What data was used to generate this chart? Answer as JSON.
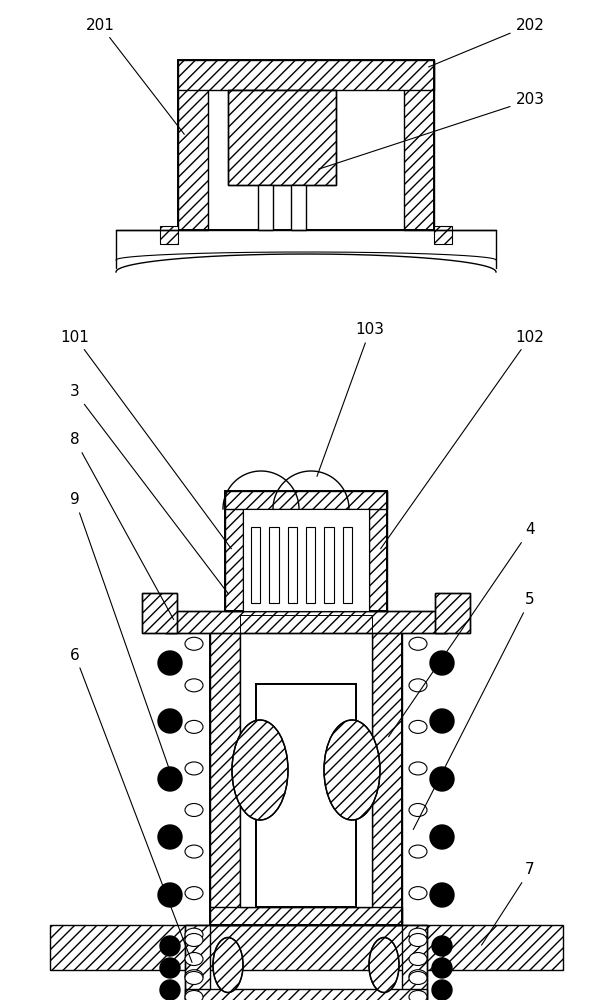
{
  "bg_color": "#ffffff",
  "lw": 1.0,
  "lw2": 1.4,
  "figsize": [
    6.13,
    10.0
  ],
  "dpi": 100
}
